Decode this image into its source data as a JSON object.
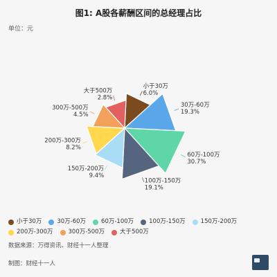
{
  "header": {
    "title": "图1: A股各薪酬区间的总经理占比",
    "unit": "单位：元"
  },
  "chart_data": {
    "type": "pie",
    "subtype": "rose",
    "categories": [
      "小于30万",
      "30万-60万",
      "60万-100万",
      "100万-150万",
      "150万-200万",
      "200万-300万",
      "300万-500万",
      "大于500万"
    ],
    "values": [
      6.0,
      19.3,
      30.7,
      19.1,
      9.4,
      8.2,
      4.5,
      2.8
    ],
    "value_labels": [
      "6.0%",
      "19.3%",
      "30.7%",
      "19.1%",
      "9.4%",
      "8.2%",
      "4.5%",
      "2.8%"
    ],
    "colors": [
      "#7b4a1e",
      "#5aa8ea",
      "#5fd6a8",
      "#55657f",
      "#a9dcf5",
      "#ffd84d",
      "#f2a05a",
      "#e46060"
    ],
    "legend_position": "bottom"
  },
  "footer": {
    "source": "数据来源：万得资讯、财经十一人整理",
    "maker": "制图：财经十一人"
  }
}
